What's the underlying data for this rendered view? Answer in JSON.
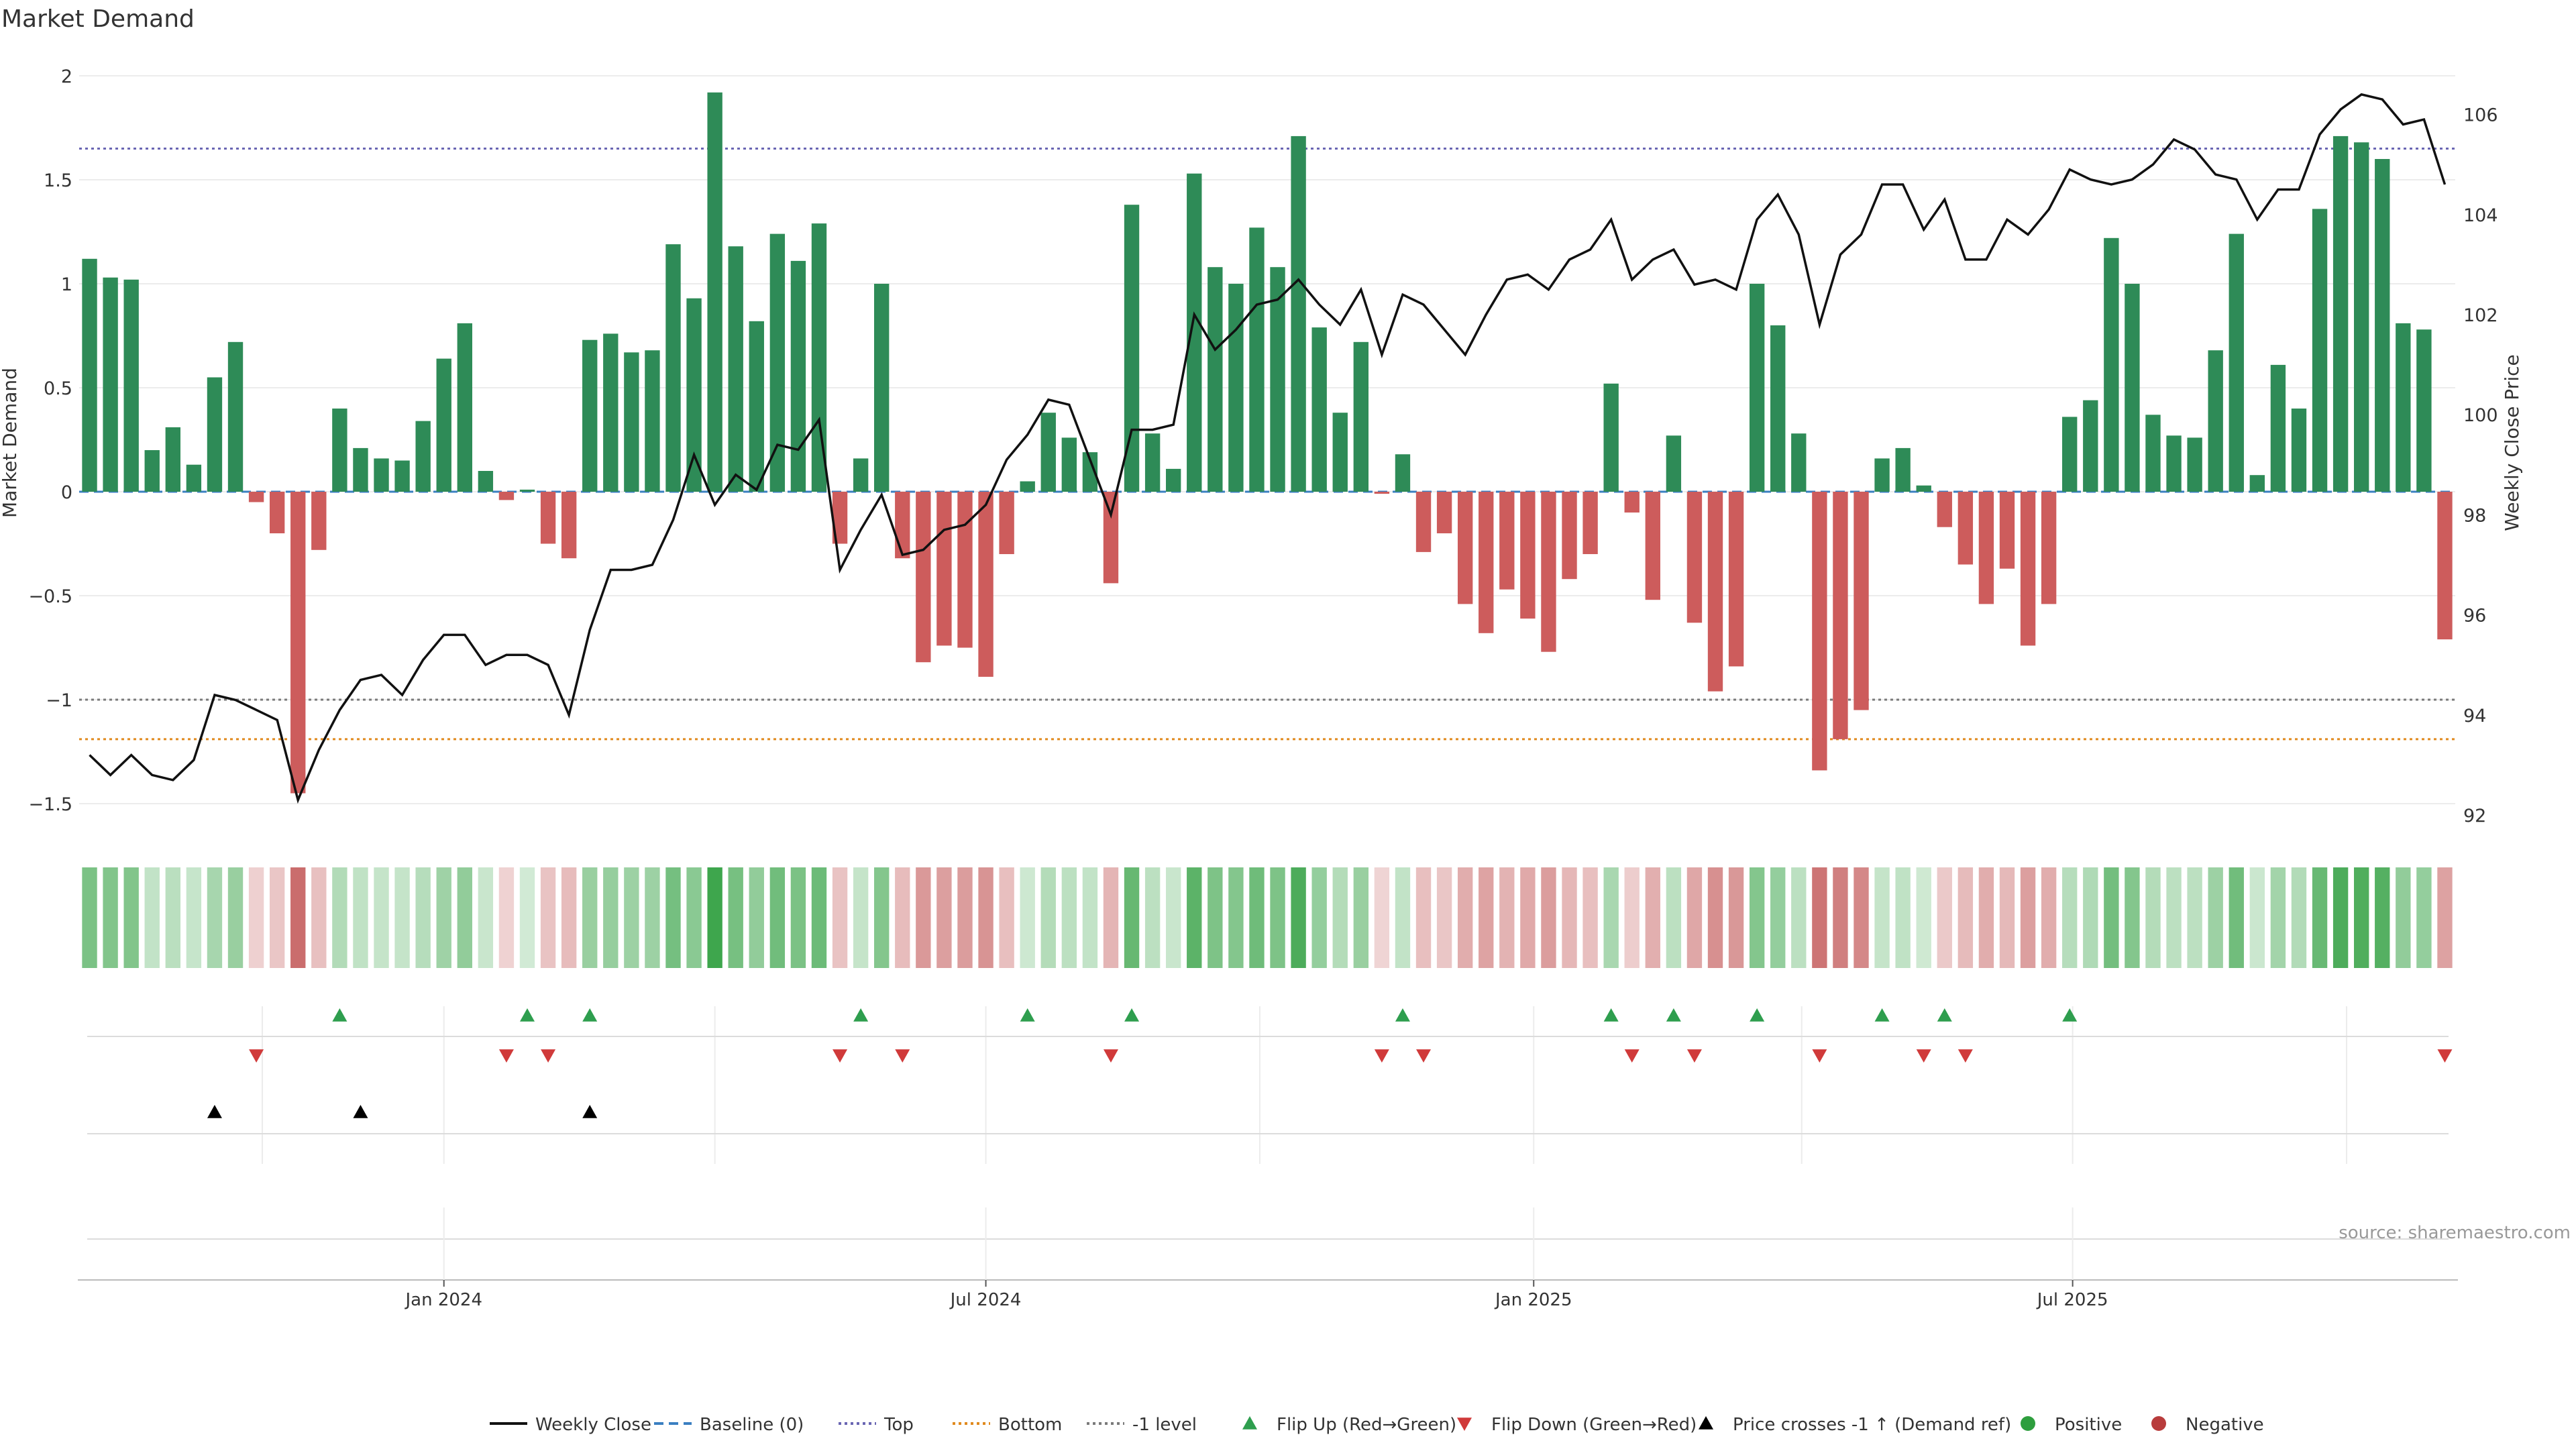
{
  "chart_data": {
    "type": "bar",
    "title": "Market Demand",
    "ylabel": "Market Demand",
    "y2label": "Weekly Close Price",
    "source": "source: sharemaestro.com",
    "ylim": [
      -1.6,
      2.0
    ],
    "yticks": [
      "2",
      "1.5",
      "1",
      "0.5",
      "0",
      "−0.5",
      "−1",
      "−1.5"
    ],
    "ytick_values": [
      2,
      1.5,
      1,
      0.5,
      0,
      -0.5,
      -1,
      -1.5
    ],
    "y2lim": [
      92,
      106.7
    ],
    "y2ticks": [
      "92",
      "94",
      "96",
      "98",
      "100",
      "102",
      "104",
      "106"
    ],
    "y2tick_values": [
      92,
      94,
      96,
      98,
      100,
      102,
      104,
      106
    ],
    "x_start": "2023-09-04",
    "xtick_labels": [
      "Jan 2024",
      "Jul 2024",
      "Jan 2025",
      "Jul 2025"
    ],
    "xtick_dates": [
      "2024-01-01",
      "2024-07-01",
      "2025-01-01",
      "2025-07-01"
    ],
    "reference_lines": {
      "top": 1.65,
      "bottom": -1.19,
      "minus_one": -1.0,
      "baseline": 0
    },
    "series": [
      {
        "name": "Market Demand",
        "values": [
          1.12,
          1.03,
          1.02,
          0.2,
          0.31,
          0.13,
          0.55,
          0.72,
          -0.05,
          -0.2,
          -1.45,
          -0.28,
          0.4,
          0.21,
          0.16,
          0.15,
          0.34,
          0.64,
          0.81,
          0.1,
          -0.04,
          0.01,
          -0.25,
          -0.32,
          0.73,
          0.76,
          0.67,
          0.68,
          1.19,
          0.93,
          1.92,
          1.18,
          0.82,
          1.24,
          1.11,
          1.29,
          -0.25,
          0.16,
          1.0,
          -0.32,
          -0.82,
          -0.74,
          -0.75,
          -0.89,
          -0.3,
          0.05,
          0.38,
          0.26,
          0.19,
          -0.44,
          1.38,
          0.28,
          0.11,
          1.53,
          1.08,
          1.0,
          1.27,
          1.08,
          1.71,
          0.79,
          0.38,
          0.72,
          -0.01,
          0.18,
          -0.29,
          -0.2,
          -0.54,
          -0.68,
          -0.47,
          -0.61,
          -0.77,
          -0.42,
          -0.3,
          0.52,
          -0.1,
          -0.52,
          0.27,
          -0.63,
          -0.96,
          -0.84,
          1.0,
          0.8,
          0.28,
          -1.34,
          -1.19,
          -1.05,
          0.16,
          0.21,
          0.03,
          -0.17,
          -0.35,
          -0.54,
          -0.37,
          -0.74,
          -0.54,
          0.36,
          0.44,
          1.22,
          1.0,
          0.37,
          0.27,
          0.26,
          0.68,
          1.24,
          0.08,
          0.61,
          0.4,
          1.36,
          1.71,
          1.68,
          1.6,
          0.81,
          0.78,
          -0.71
        ]
      },
      {
        "name": "Weekly Close",
        "values": [
          93.2,
          92.8,
          93.2,
          92.8,
          92.7,
          93.1,
          94.4,
          94.3,
          94.1,
          93.9,
          92.3,
          93.3,
          94.1,
          94.7,
          94.8,
          94.4,
          95.1,
          95.6,
          95.6,
          95.0,
          95.2,
          95.2,
          95.0,
          94.0,
          95.7,
          96.9,
          96.9,
          97.0,
          97.9,
          99.2,
          98.2,
          98.8,
          98.5,
          99.4,
          99.3,
          99.9,
          96.9,
          97.7,
          98.4,
          97.2,
          97.3,
          97.7,
          97.8,
          98.2,
          99.1,
          99.6,
          100.3,
          100.2,
          99.1,
          98.0,
          99.7,
          99.7,
          99.8,
          102.0,
          101.3,
          101.7,
          102.2,
          102.3,
          102.7,
          102.2,
          101.8,
          102.5,
          101.2,
          102.4,
          102.2,
          101.7,
          101.2,
          102.0,
          102.7,
          102.8,
          102.5,
          103.1,
          103.3,
          103.9,
          102.7,
          103.1,
          103.3,
          102.6,
          102.7,
          102.5,
          103.9,
          104.4,
          103.6,
          101.8,
          103.2,
          103.6,
          104.6,
          104.6,
          103.7,
          104.3,
          103.1,
          103.1,
          103.9,
          103.6,
          104.1,
          104.9,
          104.7,
          104.6,
          104.7,
          105.0,
          105.5,
          105.3,
          104.8,
          104.7,
          103.9,
          104.5,
          104.5,
          105.6,
          106.1,
          106.4,
          106.3,
          105.8,
          105.9,
          104.6
        ]
      }
    ],
    "heat_strip": "weekly demand heat strip (green = positive, red = negative)",
    "event_rows": {
      "flip_up": [
        12,
        21,
        24,
        37,
        45,
        50,
        63,
        73,
        76,
        80,
        86,
        89,
        95
      ],
      "flip_down": [
        8,
        20,
        22,
        36,
        39,
        49,
        62,
        64,
        74,
        77,
        83,
        88,
        90,
        113
      ],
      "price_cross": [
        6,
        13,
        24
      ]
    },
    "legend": [
      {
        "label": "Weekly Close",
        "kind": "line",
        "color": "#111111"
      },
      {
        "label": "Baseline (0)",
        "kind": "dash",
        "color": "#3a7fc1"
      },
      {
        "label": "Top",
        "kind": "dot",
        "color": "#6a66b3"
      },
      {
        "label": "Bottom",
        "kind": "dot",
        "color": "#e08a1e"
      },
      {
        "label": "-1 level",
        "kind": "dot",
        "color": "#7a7a7a"
      },
      {
        "label": "Flip Up (Red→Green)",
        "kind": "tri-up",
        "color": "#2e9e4e"
      },
      {
        "label": "Flip Down (Green→Red)",
        "kind": "tri-down",
        "color": "#d03a3a"
      },
      {
        "label": "Price crosses -1 ↑ (Demand ref)",
        "kind": "tri-up",
        "color": "#000000"
      },
      {
        "label": "Positive",
        "kind": "dot-fill",
        "color": "#2e9e3e"
      },
      {
        "label": "Negative",
        "kind": "dot-fill",
        "color": "#b83c3c"
      }
    ],
    "legend_position": "bottom-center",
    "colors": {
      "positive": "#2e8b57",
      "negative": "#cd5c5c",
      "line": "#111111"
    }
  }
}
